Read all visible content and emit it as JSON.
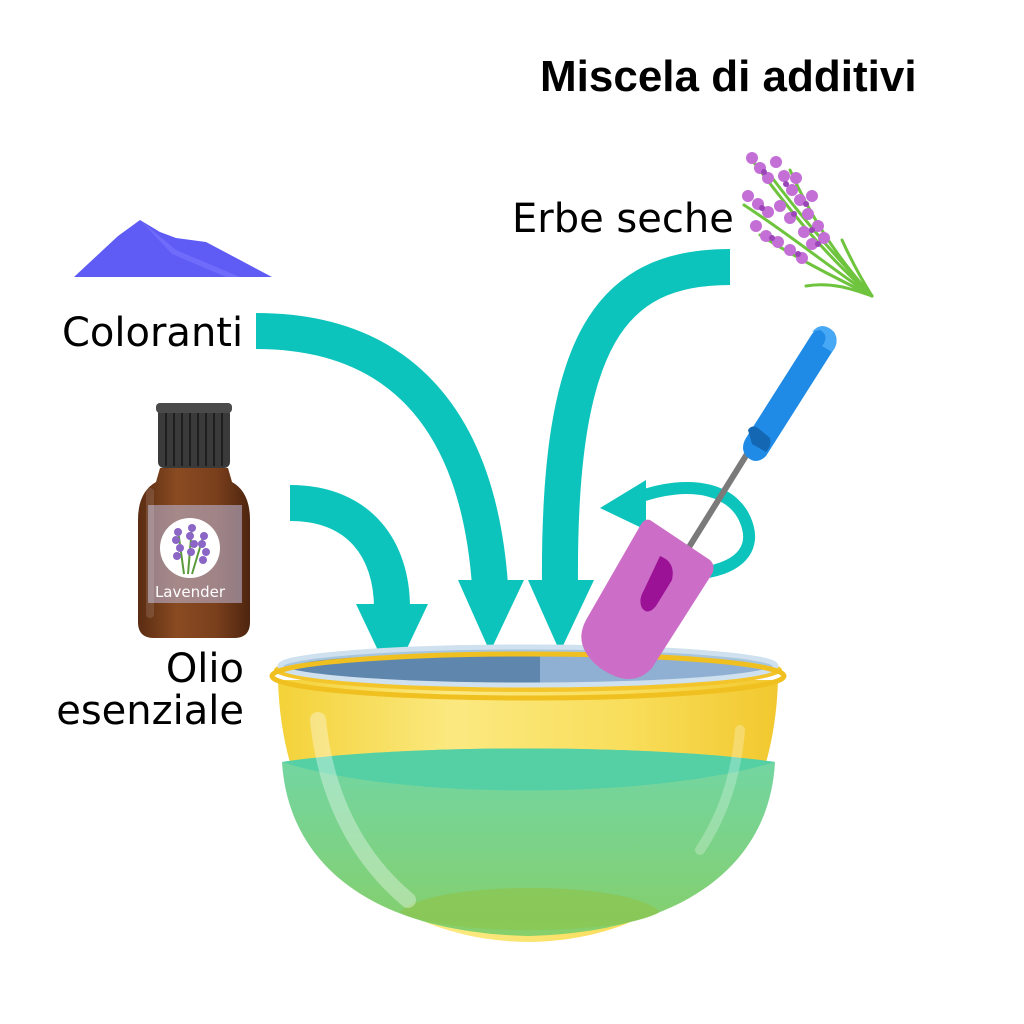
{
  "title": "Miscela di additivi",
  "labels": {
    "dried_herbs": "Erbe seche",
    "colorants": "Coloranti",
    "essential_oil_line1": "Olio",
    "essential_oil_line2": "esenziale"
  },
  "bottle_label": "Lavender",
  "colors": {
    "arrow": "#0cc4bb",
    "powder": "#5f5cf5",
    "bowl": "#f7d94a",
    "liquid": "#7dd38a",
    "bottle": "#7a3f1c",
    "cap": "#333333",
    "blender_handle": "#1f8be6",
    "blender_head": "#cc6ec8",
    "lavender": "#c36fd6",
    "stem": "#6ec43d"
  }
}
